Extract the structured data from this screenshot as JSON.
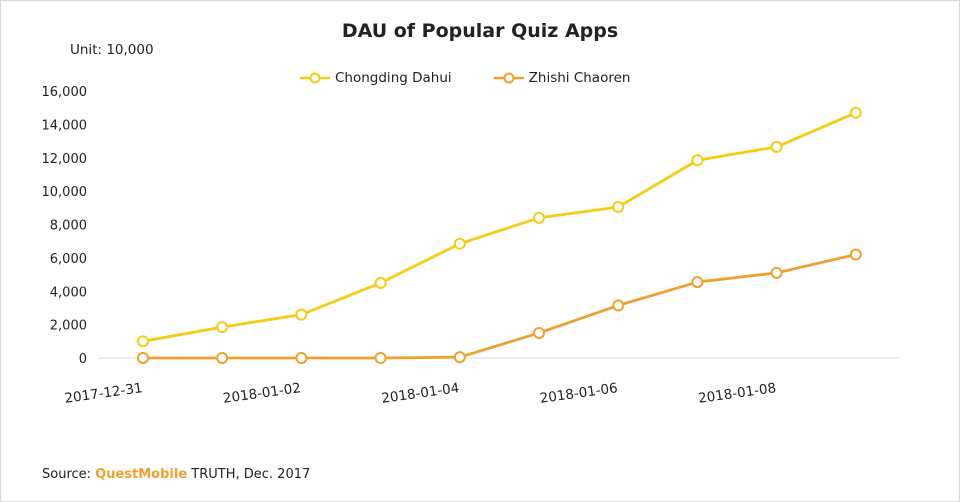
{
  "title": "DAU of Popular Quiz Apps",
  "unit": "Unit: 10,000",
  "source": {
    "prefix": "Source: ",
    "brand": "QuestMobile",
    "suffix": " TRUTH, Dec. 2017"
  },
  "chart_data": {
    "type": "line",
    "title": "DAU of Popular Quiz Apps",
    "xlabel": "",
    "ylabel": "",
    "categories": [
      "2017-12-31",
      "2018-01-01",
      "2018-01-02",
      "2018-01-03",
      "2018-01-04",
      "2018-01-05",
      "2018-01-06",
      "2018-01-07",
      "2018-01-08",
      "2018-01-09"
    ],
    "x_tick_labels": [
      "2017-12-31",
      "2018-01-02",
      "2018-01-04",
      "2018-01-06",
      "2018-01-08"
    ],
    "ylim": [
      0,
      16000
    ],
    "y_ticks": [
      "0",
      "2,000",
      "4,000",
      "6,000",
      "8,000",
      "10,000",
      "12,000",
      "14,000",
      "16,000"
    ],
    "grid": false,
    "legend_placement": "top-center",
    "series": [
      {
        "name": "Chongding Dahui",
        "color": "#f5cc14",
        "values": [
          1000,
          1850,
          2600,
          4500,
          6850,
          8400,
          9050,
          11850,
          12650,
          14700
        ]
      },
      {
        "name": "Zhishi Chaoren",
        "color": "#f0a030",
        "values": [
          0,
          0,
          0,
          0,
          50,
          1500,
          3150,
          4550,
          5100,
          6200
        ]
      }
    ]
  }
}
